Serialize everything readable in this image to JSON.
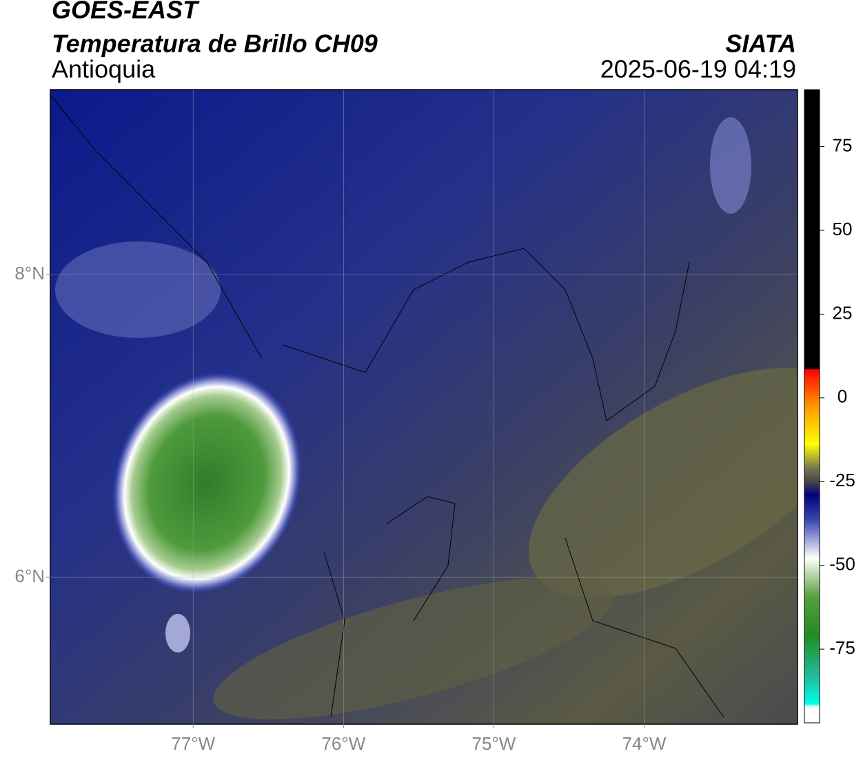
{
  "header": {
    "satellite": "GOES-EAST",
    "product": "Temperatura de Brillo CH09",
    "region": "Antioquia",
    "organization": "SIATA",
    "datetime": "2025-06-19 04:19"
  },
  "map": {
    "xlim": [
      -77.95,
      -72.98
    ],
    "ylim": [
      5.03,
      9.22
    ],
    "xticks": [
      {
        "value": -77,
        "label": "77°W"
      },
      {
        "value": -76,
        "label": "76°W"
      },
      {
        "value": -75,
        "label": "75°W"
      },
      {
        "value": -74,
        "label": "74°W"
      }
    ],
    "yticks": [
      {
        "value": 8,
        "label": "8°N"
      },
      {
        "value": 6,
        "label": "6°N"
      }
    ],
    "grid": true
  },
  "colorbar": {
    "lim": [
      -97,
      92
    ],
    "ticks": [
      75,
      50,
      25,
      0,
      -25,
      -50,
      -75
    ]
  }
}
